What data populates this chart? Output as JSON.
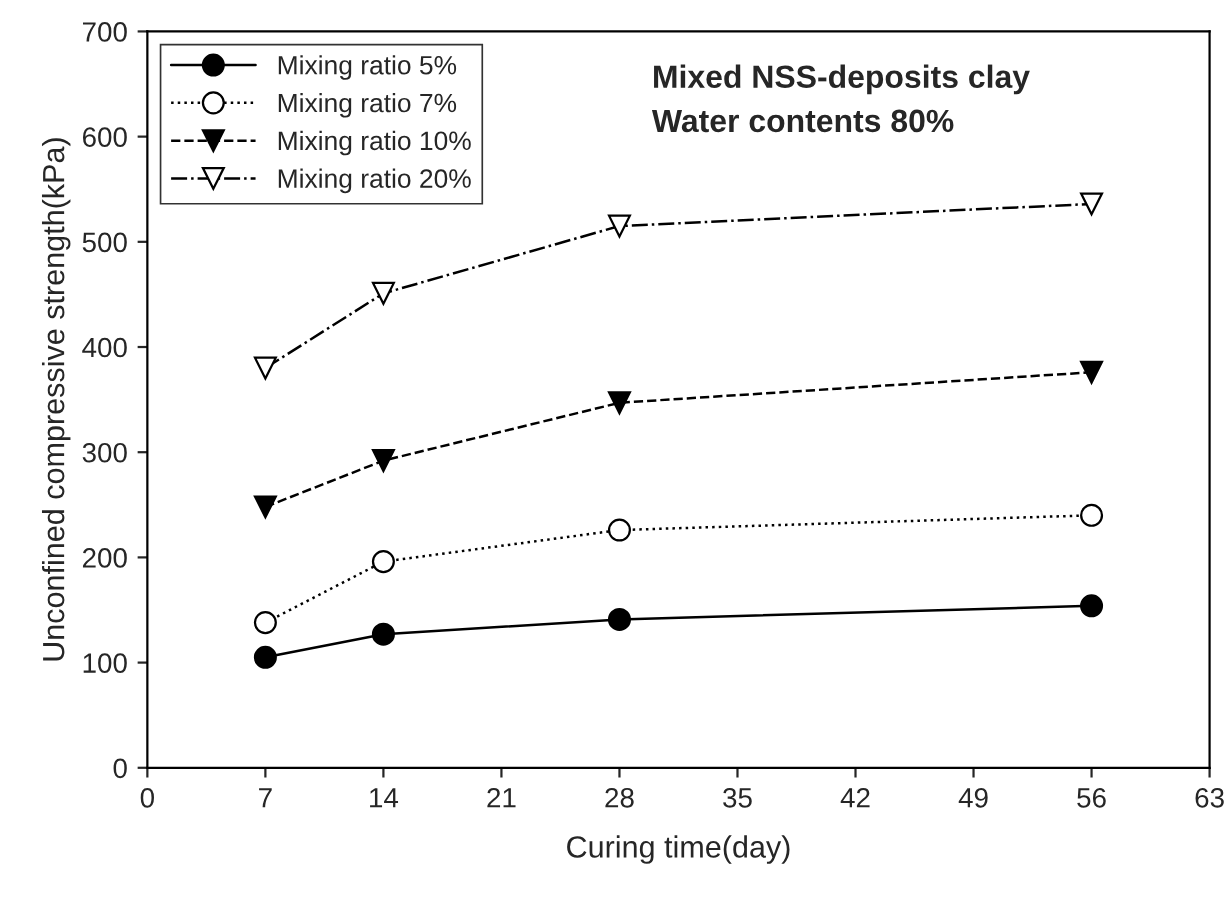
{
  "chart_data": {
    "type": "line",
    "xlabel": "Curing time(day)",
    "ylabel": "Unconfined compressive strength(kPa)",
    "annotations": [
      "Mixed NSS-deposits clay",
      "Water contents 80%"
    ],
    "x": [
      7,
      14,
      28,
      56
    ],
    "series": [
      {
        "name": "Mixing ratio 5%",
        "color": "#000000",
        "values": [
          105,
          127,
          141,
          154
        ],
        "marker": "circle",
        "line_style": "solid"
      },
      {
        "name": "Mixing ratio 7%",
        "color": "#000000",
        "values": [
          138,
          196,
          226,
          240
        ],
        "marker": "circle-open",
        "line_style": "dotted"
      },
      {
        "name": "Mixing ratio 10%",
        "color": "#000000",
        "values": [
          248,
          292,
          347,
          376
        ],
        "marker": "triangle_down",
        "line_style": "dashed"
      },
      {
        "name": "Mixing ratio 20%",
        "color": "#000000",
        "values": [
          380,
          451,
          515,
          536
        ],
        "marker": "triangle_down-open",
        "line_style": "dashdot"
      }
    ],
    "xlim": [
      0,
      63
    ],
    "xticks": [
      0,
      7,
      14,
      21,
      28,
      35,
      42,
      49,
      56,
      63
    ],
    "ylim": [
      0,
      700
    ],
    "yticks": [
      0,
      100,
      200,
      300,
      400,
      500,
      600,
      700
    ],
    "grid": false,
    "legend": "top left"
  }
}
